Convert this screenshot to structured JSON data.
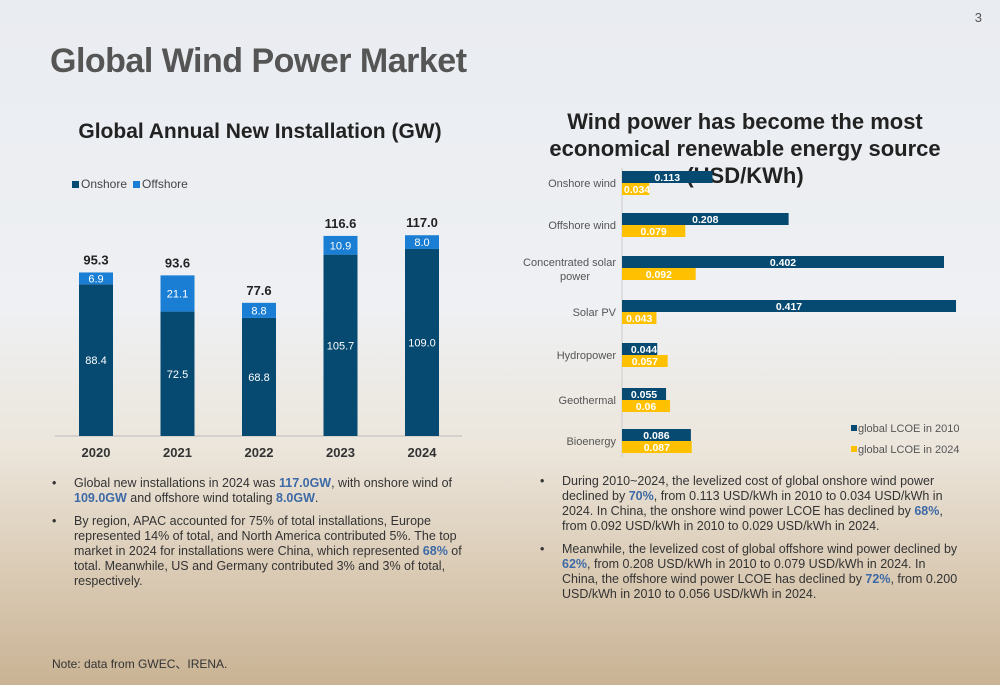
{
  "page_number": "3",
  "title": "Global Wind Power Market",
  "colors": {
    "onshore": "#064a72",
    "offshore": "#1a7fd4",
    "lcoe2010": "#064a72",
    "lcoe2024": "#ffc000",
    "highlight": "#3d6aa6"
  },
  "chart_data": [
    {
      "type": "bar",
      "stacked": true,
      "title": "Global Annual New Installation (GW)",
      "categories": [
        "2020",
        "2021",
        "2022",
        "2023",
        "2024"
      ],
      "series": [
        {
          "name": "Onshore",
          "values": [
            88.4,
            72.5,
            68.8,
            105.7,
            109.0
          ]
        },
        {
          "name": "Offshore",
          "values": [
            6.9,
            21.1,
            8.8,
            10.9,
            8.0
          ]
        }
      ],
      "totals": [
        95.3,
        93.6,
        77.6,
        116.6,
        117.0
      ],
      "value_labels": {
        "onshore": [
          "88.4",
          "72.5",
          "68.8",
          "105.7",
          "109.0"
        ],
        "offshore": [
          "6.9",
          "21.1",
          "8.8",
          "10.9",
          "8.0"
        ],
        "totals": [
          "95.3",
          "93.6",
          "77.6",
          "116.6",
          "117.0"
        ]
      },
      "ylim": [
        0,
        130
      ],
      "legend": "top-left",
      "grid": false
    },
    {
      "type": "bar",
      "orientation": "horizontal",
      "title": "Wind power has become the most economical renewable energy source  (USD/KWh)",
      "categories": [
        "Onshore wind",
        "Offshore wind",
        "Concentrated solar power",
        "Solar PV",
        "Hydropower",
        "Geothermal",
        "Bioenergy"
      ],
      "series": [
        {
          "name": "global LCOE in 2010",
          "values": [
            0.113,
            0.208,
            0.402,
            0.417,
            0.044,
            0.055,
            0.086
          ],
          "labels": [
            "0.113",
            "0.208",
            "0.402",
            "0.417",
            "0.044",
            "0.055",
            "0.086"
          ]
        },
        {
          "name": "global LCOE in 2024",
          "values": [
            0.034,
            0.079,
            0.092,
            0.043,
            0.057,
            0.06,
            0.087
          ],
          "labels": [
            "0.034",
            "0.079",
            "0.092",
            "0.043",
            "0.057",
            "0.06",
            "0.087"
          ]
        }
      ],
      "xlim": [
        0,
        0.42
      ],
      "legend": "bottom-right",
      "grid": false
    }
  ],
  "left_bullets": [
    [
      {
        "t": "Global new installations in 2024 was "
      },
      {
        "t": "117.0GW",
        "h": 1
      },
      {
        "t": ", with onshore wind of "
      },
      {
        "t": "109.0GW",
        "h": 1
      },
      {
        "t": " and offshore wind totaling "
      },
      {
        "t": "8.0GW",
        "h": 1
      },
      {
        "t": "."
      }
    ],
    [
      {
        "t": "By region, APAC accounted for 75% of total installations, Europe represented 14% of total, and North America contributed 5%. The top market in 2024 for installations were China, which represented "
      },
      {
        "t": "68%",
        "h": 1
      },
      {
        "t": " of total. Meanwhile, US and Germany contributed 3% and 3% of total, respectively."
      }
    ]
  ],
  "right_bullets": [
    [
      {
        "t": "During 2010~2024, the levelized cost of global onshore wind power declined by "
      },
      {
        "t": "70%",
        "h": 1
      },
      {
        "t": ", from 0.113 USD/kWh in 2010 to 0.034 USD/kWh in 2024. In China, the onshore wind power LCOE has declined by "
      },
      {
        "t": "68%",
        "h": 1
      },
      {
        "t": ", from 0.092 USD/kWh in 2010 to 0.029 USD/kWh in 2024."
      }
    ],
    [
      {
        "t": "Meanwhile, the levelized cost of global offshore wind power declined by "
      },
      {
        "t": "62%",
        "h": 1
      },
      {
        "t": ", from 0.208 USD/kWh in 2010 to 0.079 USD/kWh in 2024. In China, the offshore wind power LCOE has declined by "
      },
      {
        "t": "72%",
        "h": 1
      },
      {
        "t": ", from 0.200 USD/kWh in 2010 to 0.056 USD/kWh in 2024."
      }
    ]
  ],
  "note": "Note: data from GWEC、IRENA."
}
